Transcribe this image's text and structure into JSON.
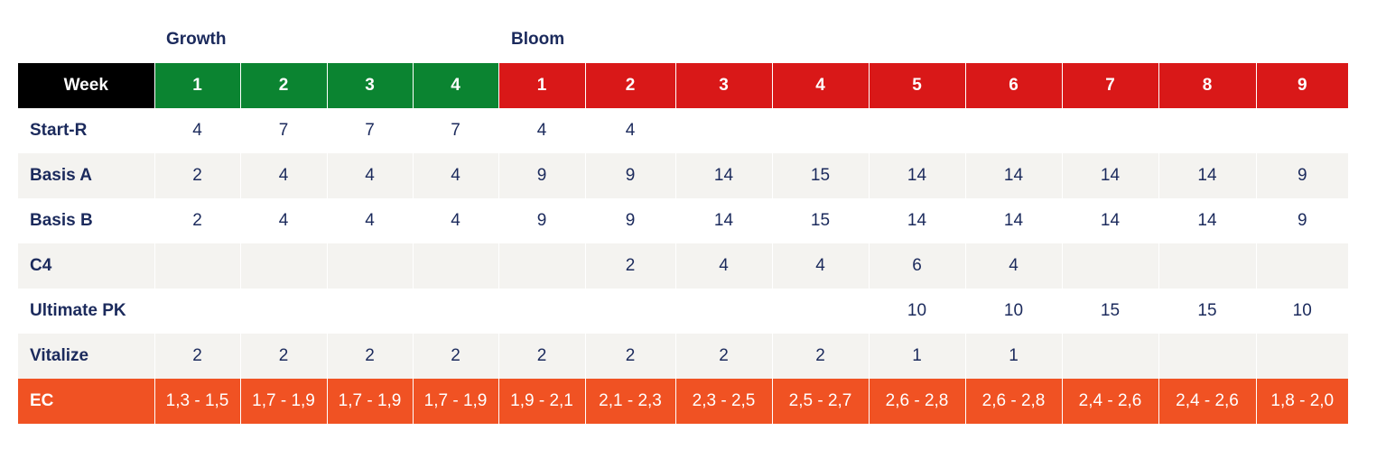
{
  "phases": {
    "growth": "Growth",
    "bloom": "Bloom"
  },
  "colors": {
    "growth": "#0b8431",
    "bloom": "#d91818",
    "header_label": "#000000",
    "ec_row": "#f05223",
    "alt_row": "#f4f3f0",
    "text": "#1b2a5c"
  },
  "header": {
    "label": "Week",
    "growth_weeks": [
      "1",
      "2",
      "3",
      "4"
    ],
    "bloom_weeks": [
      "1",
      "2",
      "3",
      "4",
      "5",
      "6",
      "7",
      "8",
      "9"
    ]
  },
  "rows": [
    {
      "label": "Start-R",
      "values": [
        "4",
        "7",
        "7",
        "7",
        "4",
        "4",
        "",
        "",
        "",
        "",
        "",
        "",
        ""
      ]
    },
    {
      "label": "Basis A",
      "values": [
        "2",
        "4",
        "4",
        "4",
        "9",
        "9",
        "14",
        "15",
        "14",
        "14",
        "14",
        "14",
        "9"
      ]
    },
    {
      "label": "Basis B",
      "values": [
        "2",
        "4",
        "4",
        "4",
        "9",
        "9",
        "14",
        "15",
        "14",
        "14",
        "14",
        "14",
        "9"
      ]
    },
    {
      "label": "C4",
      "values": [
        "",
        "",
        "",
        "",
        "",
        "2",
        "4",
        "4",
        "6",
        "4",
        "",
        "",
        ""
      ]
    },
    {
      "label": "Ultimate PK",
      "values": [
        "",
        "",
        "",
        "",
        "",
        "",
        "",
        "",
        "10",
        "10",
        "15",
        "15",
        "10"
      ]
    },
    {
      "label": "Vitalize",
      "values": [
        "2",
        "2",
        "2",
        "2",
        "2",
        "2",
        "2",
        "2",
        "1",
        "1",
        "",
        "",
        ""
      ]
    },
    {
      "label": "EC",
      "values": [
        "1,3 - 1,5",
        "1,7 - 1,9",
        "1,7 - 1,9",
        "1,7 - 1,9",
        "1,9 - 2,1",
        "2,1 - 2,3",
        "2,3 - 2,5",
        "2,5 - 2,7",
        "2,6 - 2,8",
        "2,6 - 2,8",
        "2,4 - 2,6",
        "2,4 - 2,6",
        "1,8 - 2,0"
      ]
    }
  ]
}
